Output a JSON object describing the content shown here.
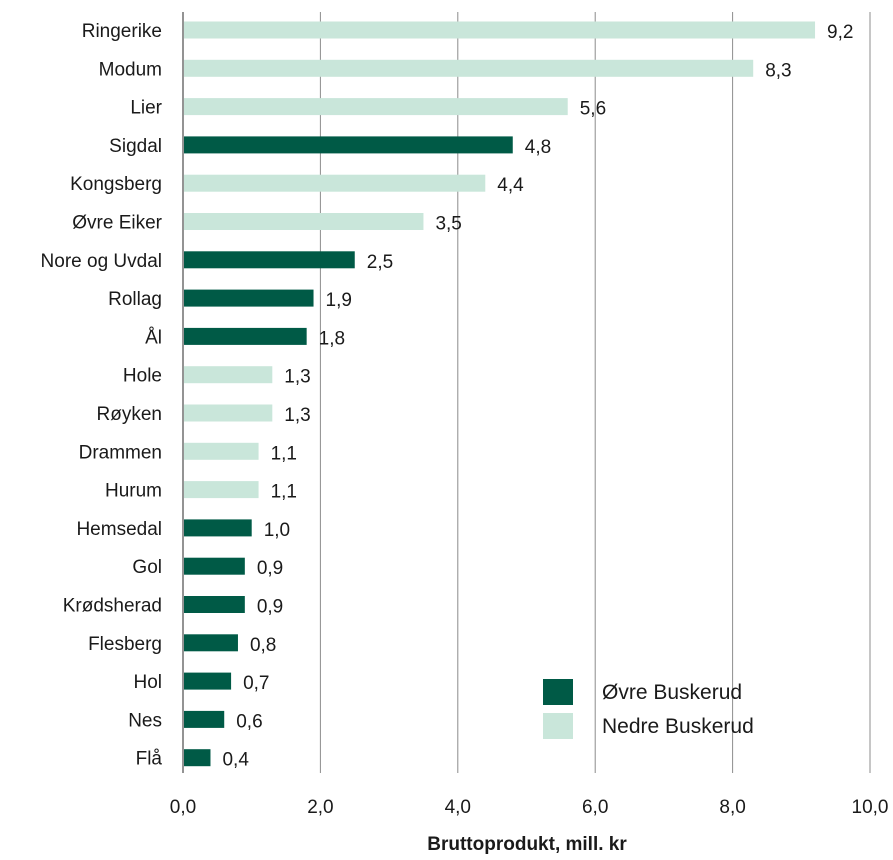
{
  "chart_data": {
    "type": "bar",
    "orientation": "horizontal",
    "xlabel": "Bruttoprodukt, mill. kr",
    "xlim": [
      0,
      10
    ],
    "xticks": [
      "0,0",
      "2,0",
      "4,0",
      "6,0",
      "8,0",
      "10,0"
    ],
    "grid": "vertical",
    "legend_position": "bottom-right",
    "series": [
      {
        "name": "Øvre Buskerud",
        "color": "#005a46"
      },
      {
        "name": "Nedre Buskerud",
        "color": "#c9e6da"
      }
    ],
    "bars": [
      {
        "label": "Ringerike",
        "value": 9.2,
        "value_label": "9,2",
        "series": "Nedre Buskerud"
      },
      {
        "label": "Modum",
        "value": 8.3,
        "value_label": "8,3",
        "series": "Nedre Buskerud"
      },
      {
        "label": "Lier",
        "value": 5.6,
        "value_label": "5,6",
        "series": "Nedre Buskerud"
      },
      {
        "label": "Sigdal",
        "value": 4.8,
        "value_label": "4,8",
        "series": "Øvre Buskerud"
      },
      {
        "label": "Kongsberg",
        "value": 4.4,
        "value_label": "4,4",
        "series": "Nedre Buskerud"
      },
      {
        "label": "Øvre Eiker",
        "value": 3.5,
        "value_label": "3,5",
        "series": "Nedre Buskerud"
      },
      {
        "label": "Nore og Uvdal",
        "value": 2.5,
        "value_label": "2,5",
        "series": "Øvre Buskerud"
      },
      {
        "label": "Rollag",
        "value": 1.9,
        "value_label": "1,9",
        "series": "Øvre Buskerud"
      },
      {
        "label": "Ål",
        "value": 1.8,
        "value_label": "1,8",
        "series": "Øvre Buskerud"
      },
      {
        "label": "Hole",
        "value": 1.3,
        "value_label": "1,3",
        "series": "Nedre Buskerud"
      },
      {
        "label": "Røyken",
        "value": 1.3,
        "value_label": "1,3",
        "series": "Nedre Buskerud"
      },
      {
        "label": "Drammen",
        "value": 1.1,
        "value_label": "1,1",
        "series": "Nedre Buskerud"
      },
      {
        "label": "Hurum",
        "value": 1.1,
        "value_label": "1,1",
        "series": "Nedre Buskerud"
      },
      {
        "label": "Hemsedal",
        "value": 1.0,
        "value_label": "1,0",
        "series": "Øvre Buskerud"
      },
      {
        "label": "Gol",
        "value": 0.9,
        "value_label": "0,9",
        "series": "Øvre Buskerud"
      },
      {
        "label": "Krødsherad",
        "value": 0.9,
        "value_label": "0,9",
        "series": "Øvre Buskerud"
      },
      {
        "label": "Flesberg",
        "value": 0.8,
        "value_label": "0,8",
        "series": "Øvre Buskerud"
      },
      {
        "label": "Hol",
        "value": 0.7,
        "value_label": "0,7",
        "series": "Øvre Buskerud"
      },
      {
        "label": "Nes",
        "value": 0.6,
        "value_label": "0,6",
        "series": "Øvre Buskerud"
      },
      {
        "label": "Flå",
        "value": 0.4,
        "value_label": "0,4",
        "series": "Øvre Buskerud"
      }
    ]
  }
}
